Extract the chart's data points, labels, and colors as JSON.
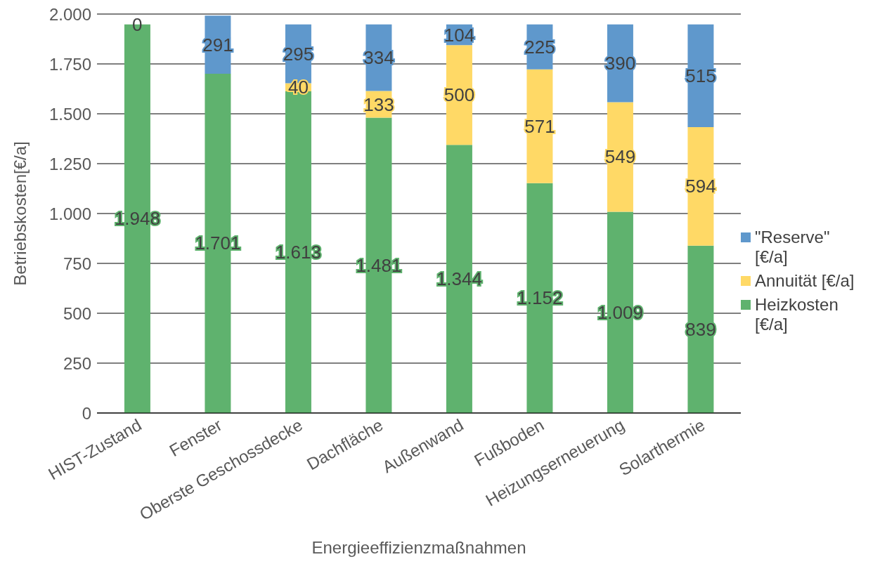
{
  "chart_data": {
    "type": "bar",
    "stacked": true,
    "xlabel": "Energieeffizienzmaßnahmen",
    "ylabel": "Betriebskosten[€/a]",
    "categories": [
      "HIST-Zustand",
      "Fenster",
      "Oberste Geschossdecke",
      "Dachfläche",
      "Außenwand",
      "Fußboden",
      "Heizungserneuerung",
      "Solarthermie"
    ],
    "series": [
      {
        "name": "Heizkosten [€/a]",
        "color": "#5fb26e",
        "values": [
          1948,
          1701,
          1613,
          1481,
          1344,
          1152,
          1009,
          839
        ],
        "value_labels": [
          "1.948",
          "1.701",
          "1.613",
          "1.481",
          "1.344",
          "1.152",
          "1.009",
          "839"
        ]
      },
      {
        "name": "Annuität [€/a]",
        "color": "#ffd966",
        "values": [
          null,
          null,
          40,
          133,
          500,
          571,
          549,
          594
        ],
        "value_labels": [
          null,
          null,
          "40",
          "133",
          "500",
          "571",
          "549",
          "594"
        ]
      },
      {
        "name": "\"Reserve\" [€/a]",
        "color": "#5f98cc",
        "values": [
          0,
          291,
          295,
          334,
          104,
          225,
          390,
          515
        ],
        "value_labels": [
          "0",
          "291",
          "295",
          "334",
          "104",
          "225",
          "390",
          "515"
        ]
      }
    ],
    "ylim": [
      0,
      2000
    ],
    "yticks": [
      {
        "value": 0,
        "label": "0"
      },
      {
        "value": 250,
        "label": "250"
      },
      {
        "value": 500,
        "label": "500"
      },
      {
        "value": 750,
        "label": "750"
      },
      {
        "value": 1000,
        "label": "1.000"
      },
      {
        "value": 1250,
        "label": "1.250"
      },
      {
        "value": 1500,
        "label": "1.500"
      },
      {
        "value": 1750,
        "label": "1.750"
      },
      {
        "value": 2000,
        "label": "2.000"
      }
    ],
    "grid": "y",
    "legend": "right"
  }
}
